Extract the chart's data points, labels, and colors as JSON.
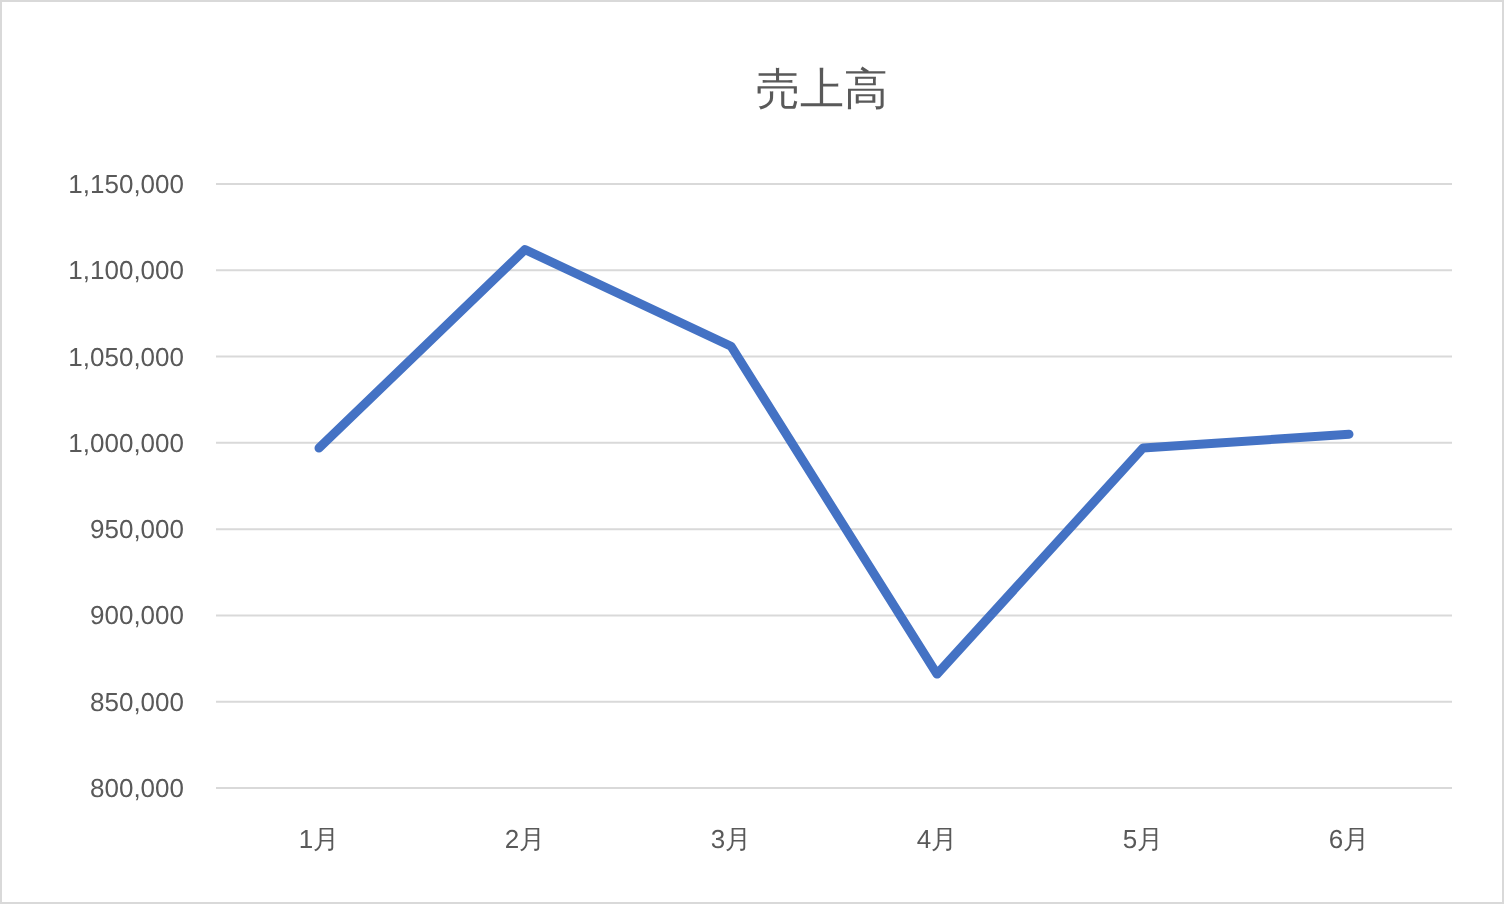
{
  "chart_data": {
    "type": "line",
    "title": "売上高",
    "categories": [
      "1月",
      "2月",
      "3月",
      "4月",
      "5月",
      "6月"
    ],
    "series": [
      {
        "color": "#4472c4",
        "values": [
          997000,
          1112000,
          1056000,
          866000,
          997000,
          1005000
        ]
      }
    ],
    "ylim": [
      800000,
      1150000
    ],
    "yticks": [
      {
        "value": 800000,
        "label": "800,000"
      },
      {
        "value": 850000,
        "label": "850,000"
      },
      {
        "value": 900000,
        "label": "900,000"
      },
      {
        "value": 950000,
        "label": "950,000"
      },
      {
        "value": 1000000,
        "label": "1,000,000"
      },
      {
        "value": 1050000,
        "label": "1,050,000"
      },
      {
        "value": 1100000,
        "label": "1,100,000"
      },
      {
        "value": 1150000,
        "label": "1,150,000"
      }
    ],
    "grid": "y"
  }
}
